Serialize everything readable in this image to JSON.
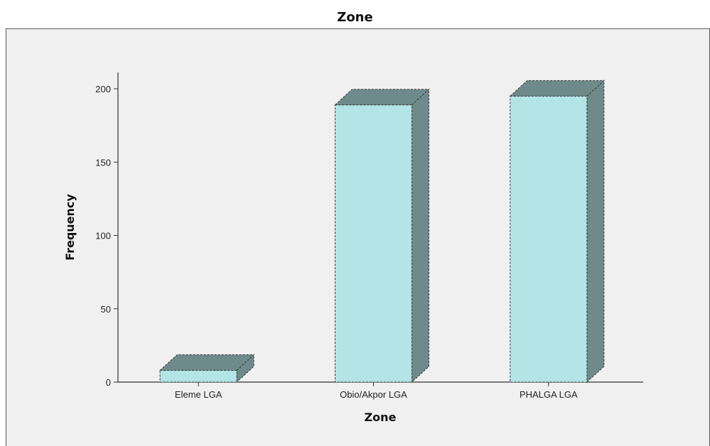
{
  "chart_data": {
    "type": "bar",
    "title": "Zone",
    "xlabel": "Zone",
    "ylabel": "Frequency",
    "categories": [
      "Eleme LGA",
      "Obio/Akpor LGA",
      "PHALGA LGA"
    ],
    "values": [
      8,
      189,
      195
    ],
    "ylim": [
      0,
      210
    ],
    "yticks": [
      0,
      50,
      100,
      150,
      200
    ],
    "grid": false,
    "style": "3d-bar",
    "colors": {
      "front": "#b3e4e6",
      "top": "#6e8a8a",
      "side": "#6e8a8a",
      "edge": "#3a3a3a",
      "background": "#f0f0f0",
      "axis": "#333333"
    }
  }
}
